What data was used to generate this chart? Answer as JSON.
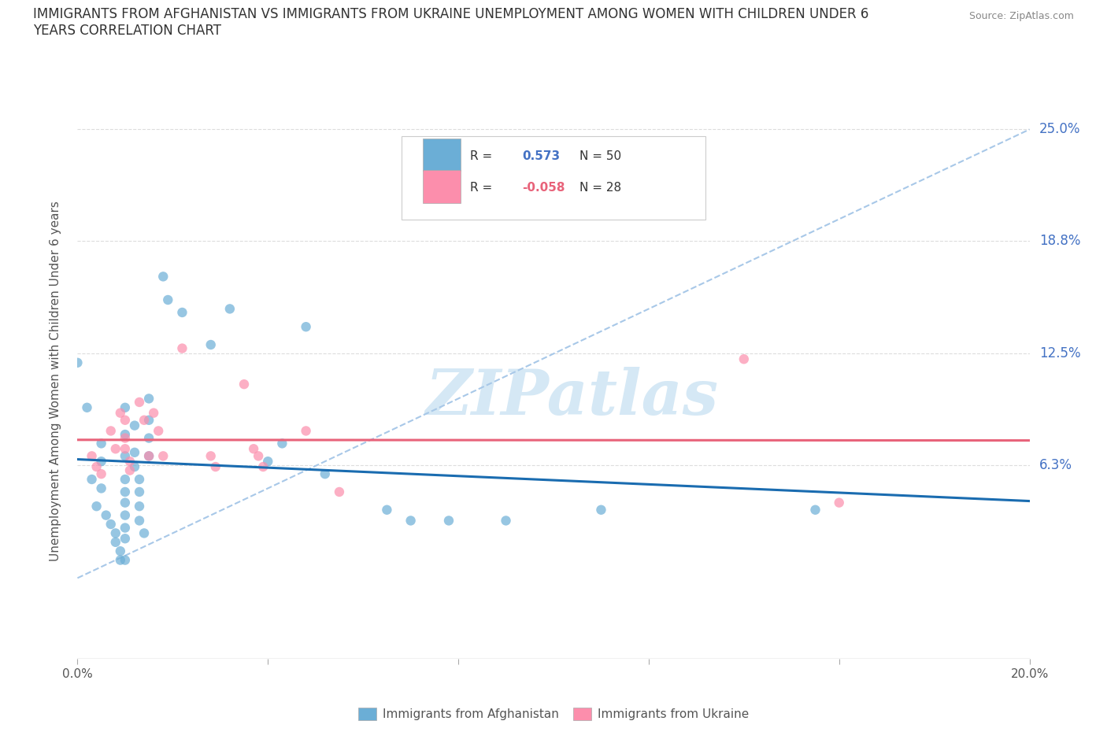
{
  "title": "IMMIGRANTS FROM AFGHANISTAN VS IMMIGRANTS FROM UKRAINE UNEMPLOYMENT AMONG WOMEN WITH CHILDREN UNDER 6\nYEARS CORRELATION CHART",
  "source": "Source: ZipAtlas.com",
  "ylabel": "Unemployment Among Women with Children Under 6 years",
  "x_min": 0.0,
  "x_max": 0.2,
  "y_min": -0.045,
  "y_max": 0.265,
  "yticks": [
    0.0,
    0.063,
    0.125,
    0.188,
    0.25
  ],
  "ytick_labels": [
    "",
    "6.3%",
    "12.5%",
    "18.8%",
    "25.0%"
  ],
  "xticks": [
    0.0,
    0.04,
    0.08,
    0.12,
    0.16,
    0.2
  ],
  "xtick_labels": [
    "0.0%",
    "",
    "",
    "",
    "",
    "20.0%"
  ],
  "afghanistan_color": "#6baed6",
  "ukraine_color": "#fc8eac",
  "afghanistan_line_color": "#1a6cb0",
  "ukraine_line_color": "#e8637a",
  "ref_line_color": "#a8c8e8",
  "background_color": "#ffffff",
  "grid_color": "#dddddd",
  "watermark": "ZIPatlas",
  "watermark_color": "#d5e8f5",
  "afghanistan_scatter": [
    [
      0.0,
      0.12
    ],
    [
      0.002,
      0.095
    ],
    [
      0.003,
      0.055
    ],
    [
      0.004,
      0.04
    ],
    [
      0.005,
      0.075
    ],
    [
      0.005,
      0.065
    ],
    [
      0.005,
      0.05
    ],
    [
      0.006,
      0.035
    ],
    [
      0.007,
      0.03
    ],
    [
      0.008,
      0.025
    ],
    [
      0.008,
      0.02
    ],
    [
      0.009,
      0.015
    ],
    [
      0.009,
      0.01
    ],
    [
      0.01,
      0.095
    ],
    [
      0.01,
      0.08
    ],
    [
      0.01,
      0.068
    ],
    [
      0.01,
      0.055
    ],
    [
      0.01,
      0.048
    ],
    [
      0.01,
      0.042
    ],
    [
      0.01,
      0.035
    ],
    [
      0.01,
      0.028
    ],
    [
      0.01,
      0.022
    ],
    [
      0.01,
      0.01
    ],
    [
      0.012,
      0.085
    ],
    [
      0.012,
      0.07
    ],
    [
      0.012,
      0.062
    ],
    [
      0.013,
      0.055
    ],
    [
      0.013,
      0.048
    ],
    [
      0.013,
      0.04
    ],
    [
      0.013,
      0.032
    ],
    [
      0.014,
      0.025
    ],
    [
      0.015,
      0.1
    ],
    [
      0.015,
      0.088
    ],
    [
      0.015,
      0.078
    ],
    [
      0.015,
      0.068
    ],
    [
      0.018,
      0.168
    ],
    [
      0.019,
      0.155
    ],
    [
      0.022,
      0.148
    ],
    [
      0.028,
      0.13
    ],
    [
      0.032,
      0.15
    ],
    [
      0.04,
      0.065
    ],
    [
      0.043,
      0.075
    ],
    [
      0.048,
      0.14
    ],
    [
      0.052,
      0.058
    ],
    [
      0.065,
      0.038
    ],
    [
      0.07,
      0.032
    ],
    [
      0.078,
      0.032
    ],
    [
      0.09,
      0.032
    ],
    [
      0.11,
      0.038
    ],
    [
      0.155,
      0.038
    ]
  ],
  "ukraine_scatter": [
    [
      0.003,
      0.068
    ],
    [
      0.004,
      0.062
    ],
    [
      0.005,
      0.058
    ],
    [
      0.007,
      0.082
    ],
    [
      0.008,
      0.072
    ],
    [
      0.009,
      0.092
    ],
    [
      0.01,
      0.088
    ],
    [
      0.01,
      0.078
    ],
    [
      0.01,
      0.072
    ],
    [
      0.011,
      0.065
    ],
    [
      0.011,
      0.06
    ],
    [
      0.013,
      0.098
    ],
    [
      0.014,
      0.088
    ],
    [
      0.015,
      0.068
    ],
    [
      0.016,
      0.092
    ],
    [
      0.017,
      0.082
    ],
    [
      0.018,
      0.068
    ],
    [
      0.022,
      0.128
    ],
    [
      0.028,
      0.068
    ],
    [
      0.029,
      0.062
    ],
    [
      0.035,
      0.108
    ],
    [
      0.037,
      0.072
    ],
    [
      0.038,
      0.068
    ],
    [
      0.039,
      0.062
    ],
    [
      0.048,
      0.082
    ],
    [
      0.055,
      0.048
    ],
    [
      0.14,
      0.122
    ],
    [
      0.16,
      0.042
    ]
  ]
}
